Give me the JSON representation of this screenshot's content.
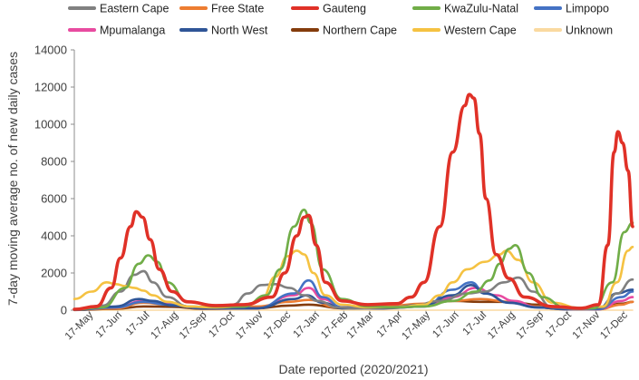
{
  "chart_data": {
    "type": "line",
    "title": "",
    "xlabel": "Date reported (2020/2021)",
    "ylabel": "7-day moving average no. of new daily cases",
    "ylim": [
      0,
      14000
    ],
    "yticks": [
      0,
      2000,
      4000,
      6000,
      8000,
      10000,
      12000,
      14000
    ],
    "x_range": [
      "2020-05-01",
      "2021-12-27"
    ],
    "x_tick_labels": [
      "17-May",
      "17-Jun",
      "17-Jul",
      "17-Aug",
      "17-Sep",
      "17-Oct",
      "17-Nov",
      "17-Dec",
      "17-Jan",
      "17-Feb",
      "17-Mar",
      "17-Apr",
      "17-May",
      "17-Jun",
      "17-Jul",
      "17-Aug",
      "17-Sep",
      "17-Oct",
      "17-Nov",
      "17-Dec"
    ],
    "x_tick_dates": [
      "2020-05-17",
      "2020-06-17",
      "2020-07-17",
      "2020-08-17",
      "2020-09-17",
      "2020-10-17",
      "2020-11-17",
      "2020-12-17",
      "2021-01-17",
      "2021-02-17",
      "2021-03-17",
      "2021-04-17",
      "2021-05-17",
      "2021-06-17",
      "2021-07-17",
      "2021-08-17",
      "2021-09-17",
      "2021-10-17",
      "2021-11-17",
      "2021-12-17"
    ],
    "legend_position": "top",
    "grid": false,
    "series": [
      {
        "name": "Eastern Cape",
        "color": "#808080",
        "points": [
          [
            "2020-05-01",
            50
          ],
          [
            "2020-06-01",
            250
          ],
          [
            "2020-06-20",
            1000
          ],
          [
            "2020-07-05",
            1900
          ],
          [
            "2020-07-15",
            2100
          ],
          [
            "2020-07-25",
            1500
          ],
          [
            "2020-08-10",
            700
          ],
          [
            "2020-09-01",
            200
          ],
          [
            "2020-10-01",
            150
          ],
          [
            "2020-10-20",
            300
          ],
          [
            "2020-11-05",
            900
          ],
          [
            "2020-11-20",
            1350
          ],
          [
            "2020-12-05",
            1400
          ],
          [
            "2020-12-20",
            1200
          ],
          [
            "2021-01-05",
            800
          ],
          [
            "2021-01-20",
            500
          ],
          [
            "2021-02-10",
            150
          ],
          [
            "2021-03-01",
            100
          ],
          [
            "2021-04-01",
            150
          ],
          [
            "2021-05-01",
            200
          ],
          [
            "2021-06-01",
            500
          ],
          [
            "2021-07-01",
            900
          ],
          [
            "2021-07-20",
            1000
          ],
          [
            "2021-08-10",
            1500
          ],
          [
            "2021-08-25",
            1750
          ],
          [
            "2021-09-10",
            1000
          ],
          [
            "2021-10-01",
            150
          ],
          [
            "2021-11-01",
            50
          ],
          [
            "2021-11-25",
            150
          ],
          [
            "2021-12-10",
            900
          ],
          [
            "2021-12-27",
            1650
          ]
        ]
      },
      {
        "name": "Free State",
        "color": "#ED7D31",
        "points": [
          [
            "2020-05-01",
            20
          ],
          [
            "2020-06-15",
            100
          ],
          [
            "2020-07-15",
            400
          ],
          [
            "2020-08-10",
            300
          ],
          [
            "2020-09-15",
            100
          ],
          [
            "2020-11-15",
            200
          ],
          [
            "2020-12-20",
            450
          ],
          [
            "2021-01-10",
            550
          ],
          [
            "2021-02-10",
            150
          ],
          [
            "2021-04-01",
            200
          ],
          [
            "2021-05-15",
            350
          ],
          [
            "2021-06-15",
            500
          ],
          [
            "2021-07-15",
            600
          ],
          [
            "2021-08-15",
            450
          ],
          [
            "2021-09-15",
            200
          ],
          [
            "2021-10-15",
            50
          ],
          [
            "2021-11-20",
            50
          ],
          [
            "2021-12-15",
            300
          ],
          [
            "2021-12-27",
            450
          ]
        ]
      },
      {
        "name": "Gauteng",
        "color": "#E03127",
        "points": [
          [
            "2020-05-01",
            50
          ],
          [
            "2020-05-25",
            200
          ],
          [
            "2020-06-10",
            1200
          ],
          [
            "2020-06-20",
            2800
          ],
          [
            "2020-07-01",
            4500
          ],
          [
            "2020-07-07",
            5300
          ],
          [
            "2020-07-14",
            5000
          ],
          [
            "2020-07-22",
            3800
          ],
          [
            "2020-08-01",
            2200
          ],
          [
            "2020-08-15",
            1000
          ],
          [
            "2020-09-01",
            450
          ],
          [
            "2020-10-01",
            250
          ],
          [
            "2020-11-01",
            300
          ],
          [
            "2020-12-01",
            700
          ],
          [
            "2020-12-15",
            2000
          ],
          [
            "2020-12-28",
            4000
          ],
          [
            "2021-01-05",
            5000
          ],
          [
            "2021-01-10",
            5100
          ],
          [
            "2021-01-18",
            3500
          ],
          [
            "2021-01-28",
            1500
          ],
          [
            "2021-02-15",
            500
          ],
          [
            "2021-03-15",
            300
          ],
          [
            "2021-04-15",
            350
          ],
          [
            "2021-05-01",
            700
          ],
          [
            "2021-05-15",
            1500
          ],
          [
            "2021-06-01",
            4500
          ],
          [
            "2021-06-15",
            8500
          ],
          [
            "2021-06-28",
            11000
          ],
          [
            "2021-07-03",
            11600
          ],
          [
            "2021-07-08",
            11400
          ],
          [
            "2021-07-14",
            9500
          ],
          [
            "2021-07-21",
            6000
          ],
          [
            "2021-08-01",
            3000
          ],
          [
            "2021-08-15",
            1700
          ],
          [
            "2021-09-01",
            700
          ],
          [
            "2021-10-01",
            200
          ],
          [
            "2021-11-01",
            100
          ],
          [
            "2021-11-20",
            300
          ],
          [
            "2021-11-30",
            3500
          ],
          [
            "2021-12-07",
            8500
          ],
          [
            "2021-12-11",
            9600
          ],
          [
            "2021-12-16",
            9000
          ],
          [
            "2021-12-22",
            7500
          ],
          [
            "2021-12-27",
            4500
          ]
        ]
      },
      {
        "name": "KwaZulu-Natal",
        "color": "#70AD47",
        "points": [
          [
            "2020-05-01",
            30
          ],
          [
            "2020-06-01",
            150
          ],
          [
            "2020-06-25",
            1200
          ],
          [
            "2020-07-10",
            2500
          ],
          [
            "2020-07-20",
            2950
          ],
          [
            "2020-07-30",
            2600
          ],
          [
            "2020-08-10",
            1500
          ],
          [
            "2020-09-01",
            450
          ],
          [
            "2020-10-01",
            200
          ],
          [
            "2020-11-01",
            200
          ],
          [
            "2020-11-25",
            800
          ],
          [
            "2020-12-10",
            2200
          ],
          [
            "2020-12-25",
            4500
          ],
          [
            "2021-01-05",
            5400
          ],
          [
            "2021-01-12",
            4700
          ],
          [
            "2021-01-25",
            2200
          ],
          [
            "2021-02-15",
            600
          ],
          [
            "2021-03-15",
            200
          ],
          [
            "2021-04-15",
            150
          ],
          [
            "2021-05-15",
            200
          ],
          [
            "2021-06-15",
            500
          ],
          [
            "2021-07-10",
            1000
          ],
          [
            "2021-07-25",
            1600
          ],
          [
            "2021-08-05",
            2500
          ],
          [
            "2021-08-15",
            3300
          ],
          [
            "2021-08-22",
            3500
          ],
          [
            "2021-09-05",
            2000
          ],
          [
            "2021-09-20",
            700
          ],
          [
            "2021-10-15",
            150
          ],
          [
            "2021-11-15",
            100
          ],
          [
            "2021-12-05",
            1500
          ],
          [
            "2021-12-18",
            4200
          ],
          [
            "2021-12-27",
            4700
          ]
        ]
      },
      {
        "name": "Limpopo",
        "color": "#4472C4",
        "points": [
          [
            "2020-05-01",
            20
          ],
          [
            "2020-06-15",
            150
          ],
          [
            "2020-07-15",
            450
          ],
          [
            "2020-08-10",
            300
          ],
          [
            "2020-09-15",
            100
          ],
          [
            "2020-11-15",
            100
          ],
          [
            "2020-12-25",
            900
          ],
          [
            "2021-01-10",
            1600
          ],
          [
            "2021-01-25",
            700
          ],
          [
            "2021-02-15",
            150
          ],
          [
            "2021-04-01",
            100
          ],
          [
            "2021-05-15",
            200
          ],
          [
            "2021-06-15",
            1100
          ],
          [
            "2021-07-05",
            1500
          ],
          [
            "2021-07-20",
            900
          ],
          [
            "2021-08-15",
            400
          ],
          [
            "2021-09-15",
            150
          ],
          [
            "2021-10-15",
            50
          ],
          [
            "2021-11-20",
            50
          ],
          [
            "2021-12-15",
            700
          ],
          [
            "2021-12-27",
            1000
          ]
        ]
      },
      {
        "name": "Mpumalanga",
        "color": "#E84BA0",
        "points": [
          [
            "2020-05-01",
            20
          ],
          [
            "2020-06-15",
            150
          ],
          [
            "2020-07-15",
            500
          ],
          [
            "2020-08-10",
            350
          ],
          [
            "2020-09-15",
            100
          ],
          [
            "2020-11-15",
            100
          ],
          [
            "2020-12-25",
            800
          ],
          [
            "2021-01-10",
            1200
          ],
          [
            "2021-01-25",
            600
          ],
          [
            "2021-02-15",
            150
          ],
          [
            "2021-04-01",
            100
          ],
          [
            "2021-05-15",
            200
          ],
          [
            "2021-06-15",
            700
          ],
          [
            "2021-07-10",
            1200
          ],
          [
            "2021-08-01",
            800
          ],
          [
            "2021-08-20",
            500
          ],
          [
            "2021-09-15",
            150
          ],
          [
            "2021-10-15",
            50
          ],
          [
            "2021-11-20",
            50
          ],
          [
            "2021-12-15",
            500
          ],
          [
            "2021-12-27",
            700
          ]
        ]
      },
      {
        "name": "North West",
        "color": "#2F5597",
        "points": [
          [
            "2020-05-01",
            20
          ],
          [
            "2020-06-15",
            200
          ],
          [
            "2020-07-10",
            600
          ],
          [
            "2020-07-25",
            500
          ],
          [
            "2020-08-15",
            250
          ],
          [
            "2020-09-15",
            100
          ],
          [
            "2020-11-15",
            100
          ],
          [
            "2020-12-25",
            600
          ],
          [
            "2021-01-08",
            800
          ],
          [
            "2021-01-25",
            400
          ],
          [
            "2021-02-15",
            100
          ],
          [
            "2021-04-01",
            100
          ],
          [
            "2021-05-15",
            300
          ],
          [
            "2021-06-15",
            800
          ],
          [
            "2021-07-05",
            1350
          ],
          [
            "2021-07-20",
            900
          ],
          [
            "2021-08-15",
            400
          ],
          [
            "2021-09-15",
            150
          ],
          [
            "2021-10-15",
            50
          ],
          [
            "2021-11-20",
            100
          ],
          [
            "2021-12-10",
            900
          ],
          [
            "2021-12-27",
            1100
          ]
        ]
      },
      {
        "name": "Northern Cape",
        "color": "#843C0C",
        "points": [
          [
            "2020-05-01",
            10
          ],
          [
            "2020-06-15",
            80
          ],
          [
            "2020-07-15",
            200
          ],
          [
            "2020-08-15",
            180
          ],
          [
            "2020-09-15",
            80
          ],
          [
            "2020-11-15",
            100
          ],
          [
            "2020-12-20",
            250
          ],
          [
            "2021-01-10",
            300
          ],
          [
            "2021-02-15",
            100
          ],
          [
            "2021-04-01",
            150
          ],
          [
            "2021-05-15",
            300
          ],
          [
            "2021-06-15",
            500
          ],
          [
            "2021-07-15",
            450
          ],
          [
            "2021-08-15",
            450
          ],
          [
            "2021-09-15",
            300
          ],
          [
            "2021-10-15",
            80
          ],
          [
            "2021-11-20",
            50
          ],
          [
            "2021-12-15",
            350
          ],
          [
            "2021-12-27",
            450
          ]
        ]
      },
      {
        "name": "Western Cape",
        "color": "#F5C242",
        "points": [
          [
            "2020-05-01",
            600
          ],
          [
            "2020-05-20",
            1000
          ],
          [
            "2020-06-05",
            1500
          ],
          [
            "2020-06-15",
            1400
          ],
          [
            "2020-06-25",
            1300
          ],
          [
            "2020-07-05",
            1200
          ],
          [
            "2020-07-15",
            1050
          ],
          [
            "2020-07-25",
            800
          ],
          [
            "2020-08-10",
            450
          ],
          [
            "2020-09-01",
            200
          ],
          [
            "2020-10-01",
            150
          ],
          [
            "2020-11-01",
            200
          ],
          [
            "2020-11-20",
            600
          ],
          [
            "2020-12-05",
            1800
          ],
          [
            "2020-12-18",
            2900
          ],
          [
            "2020-12-28",
            3200
          ],
          [
            "2021-01-05",
            3000
          ],
          [
            "2021-01-15",
            2000
          ],
          [
            "2021-01-28",
            800
          ],
          [
            "2021-02-15",
            300
          ],
          [
            "2021-03-15",
            150
          ],
          [
            "2021-04-15",
            150
          ],
          [
            "2021-05-15",
            300
          ],
          [
            "2021-06-01",
            800
          ],
          [
            "2021-06-15",
            1500
          ],
          [
            "2021-07-01",
            2200
          ],
          [
            "2021-07-20",
            2600
          ],
          [
            "2021-08-05",
            3000
          ],
          [
            "2021-08-12",
            3200
          ],
          [
            "2021-08-25",
            2700
          ],
          [
            "2021-09-10",
            1500
          ],
          [
            "2021-10-01",
            400
          ],
          [
            "2021-11-01",
            100
          ],
          [
            "2021-11-25",
            200
          ],
          [
            "2021-12-10",
            1500
          ],
          [
            "2021-12-22",
            3200
          ],
          [
            "2021-12-27",
            3400
          ]
        ]
      },
      {
        "name": "Unknown",
        "color": "#FAD9A0",
        "points": [
          [
            "2020-05-01",
            0
          ],
          [
            "2021-12-27",
            0
          ]
        ]
      }
    ]
  }
}
